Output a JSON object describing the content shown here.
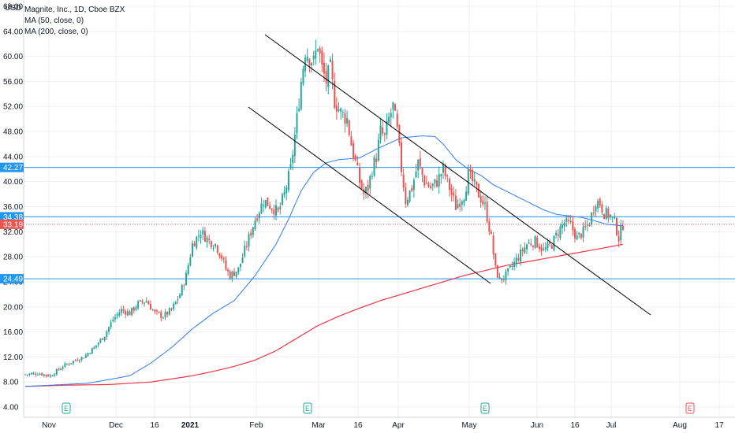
{
  "chart_data": {
    "type": "candlestick",
    "currency_label": "USD",
    "legend": [
      {
        "label": "Magnite, Inc., 1D, Cboe BZX"
      },
      {
        "label": "MA (50, close, 0)"
      },
      {
        "label": "MA (200, close, 0)"
      }
    ],
    "y_axis": {
      "ticks": [
        "4.00",
        "8.00",
        "12.00",
        "16.00",
        "20.00",
        "24.00",
        "28.00",
        "32.00",
        "36.00",
        "40.00",
        "44.00",
        "48.00",
        "52.00",
        "56.00",
        "60.00",
        "64.00",
        "68.00"
      ],
      "range": [
        2.5,
        69
      ]
    },
    "x_axis": {
      "ticks": [
        {
          "label": "Nov",
          "bold": false
        },
        {
          "label": "Dec",
          "bold": false
        },
        {
          "label": "16",
          "bold": false
        },
        {
          "label": "2021",
          "bold": true
        },
        {
          "label": "Feb",
          "bold": false
        },
        {
          "label": "Mar",
          "bold": false
        },
        {
          "label": "16",
          "bold": false
        },
        {
          "label": "Apr",
          "bold": false
        },
        {
          "label": "May",
          "bold": false
        },
        {
          "label": "Jun",
          "bold": false
        },
        {
          "label": "16",
          "bold": false
        },
        {
          "label": "Jul",
          "bold": false
        },
        {
          "label": "Aug",
          "bold": false
        },
        {
          "label": "17",
          "bold": false
        }
      ]
    },
    "horizontal_levels": [
      {
        "value": 42.27,
        "label": "42.27"
      },
      {
        "value": 34.38,
        "label": "34.38"
      },
      {
        "value": 24.49,
        "label": "24.49"
      }
    ],
    "last_price": {
      "value": 33.19,
      "label": "33.19"
    },
    "earnings_markers": [
      {
        "label": "E",
        "color": "#26a69a"
      },
      {
        "label": "E",
        "color": "#26a69a"
      },
      {
        "label": "E",
        "color": "#26a69a"
      },
      {
        "label": "E",
        "color": "#ef5350"
      }
    ],
    "colors": {
      "up": "#26a69a",
      "down": "#ef5350",
      "ma50": "#3179f5",
      "ma200": "#f23645",
      "level": "#2196f3",
      "trendline": "#000000",
      "grid": "#eef0f3",
      "axis_text": "#131722"
    },
    "close_path": [
      [
        0,
        9.2
      ],
      [
        6,
        9.4
      ],
      [
        12,
        9.0
      ],
      [
        18,
        10.5
      ],
      [
        24,
        11.5
      ],
      [
        28,
        12.0
      ],
      [
        33,
        13.5
      ],
      [
        38,
        15.5
      ],
      [
        42,
        18.0
      ],
      [
        46,
        19.5
      ],
      [
        50,
        19.0
      ],
      [
        54,
        20.5
      ],
      [
        58,
        21.0
      ],
      [
        62,
        19.0
      ],
      [
        66,
        18.5
      ],
      [
        70,
        19.5
      ],
      [
        74,
        22.0
      ],
      [
        77,
        25.0
      ],
      [
        80,
        30.0
      ],
      [
        84,
        32.0
      ],
      [
        88,
        30.5
      ],
      [
        91,
        30.0
      ],
      [
        94,
        28.0
      ],
      [
        96,
        26.0
      ],
      [
        98,
        25.0
      ],
      [
        102,
        26.0
      ],
      [
        106,
        30.0
      ],
      [
        110,
        34.0
      ],
      [
        114,
        37.0
      ],
      [
        118,
        36.0
      ],
      [
        121,
        35.0
      ],
      [
        124,
        38.0
      ],
      [
        127,
        42.0
      ],
      [
        130,
        50.0
      ],
      [
        132,
        56.0
      ],
      [
        134,
        61.0
      ],
      [
        136,
        60.0
      ],
      [
        138,
        59.0
      ],
      [
        140,
        62.0
      ],
      [
        142,
        58.0
      ],
      [
        144,
        56.0
      ],
      [
        146,
        58.0
      ],
      [
        148,
        53.0
      ],
      [
        151,
        51.0
      ],
      [
        154,
        50.0
      ],
      [
        156,
        46.0
      ],
      [
        158,
        43.0
      ],
      [
        160,
        40.0
      ],
      [
        162,
        38.0
      ],
      [
        164,
        39.0
      ],
      [
        166,
        42.0
      ],
      [
        168,
        44.0
      ],
      [
        170,
        48.0
      ],
      [
        172,
        47.0
      ],
      [
        174,
        50.0
      ],
      [
        176,
        52.0
      ],
      [
        178,
        48.0
      ],
      [
        180,
        42.0
      ],
      [
        182,
        37.0
      ],
      [
        185,
        39.0
      ],
      [
        188,
        43.0
      ],
      [
        191,
        40.0
      ],
      [
        194,
        39.0
      ],
      [
        197,
        40.0
      ],
      [
        200,
        42.0
      ],
      [
        203,
        39.0
      ],
      [
        206,
        36.0
      ],
      [
        210,
        38.0
      ],
      [
        212,
        41.0
      ],
      [
        214,
        40.0
      ],
      [
        217,
        38.0
      ],
      [
        220,
        36.0
      ],
      [
        223,
        31.0
      ],
      [
        225,
        26.0
      ],
      [
        227,
        24.3
      ],
      [
        230,
        25.0
      ],
      [
        233,
        26.5
      ],
      [
        236,
        28.0
      ],
      [
        240,
        30.0
      ],
      [
        244,
        30.5
      ],
      [
        248,
        29.0
      ],
      [
        252,
        30.0
      ],
      [
        255,
        32.0
      ],
      [
        258,
        33.5
      ],
      [
        261,
        33.0
      ],
      [
        264,
        31.0
      ],
      [
        267,
        32.0
      ],
      [
        270,
        33.5
      ],
      [
        273,
        37.0
      ],
      [
        275,
        36.5
      ],
      [
        277,
        35.0
      ],
      [
        280,
        34.5
      ],
      [
        282,
        33.5
      ],
      [
        284,
        31.0
      ],
      [
        286,
        33.19
      ]
    ],
    "ma50_path": [
      [
        0,
        7.3
      ],
      [
        30,
        7.8
      ],
      [
        50,
        9.0
      ],
      [
        60,
        11.0
      ],
      [
        70,
        13.5
      ],
      [
        80,
        16.5
      ],
      [
        90,
        19.0
      ],
      [
        100,
        21.0
      ],
      [
        110,
        25.0
      ],
      [
        120,
        30.0
      ],
      [
        126,
        34.0
      ],
      [
        132,
        38.5
      ],
      [
        138,
        41.5
      ],
      [
        144,
        43.0
      ],
      [
        150,
        43.5
      ],
      [
        160,
        43.8
      ],
      [
        170,
        45.5
      ],
      [
        180,
        47.0
      ],
      [
        190,
        47.3
      ],
      [
        196,
        47.2
      ],
      [
        200,
        46.0
      ],
      [
        206,
        43.5
      ],
      [
        212,
        42.0
      ],
      [
        218,
        41.0
      ],
      [
        224,
        39.5
      ],
      [
        230,
        38.5
      ],
      [
        236,
        37.5
      ],
      [
        242,
        36.5
      ],
      [
        248,
        35.5
      ],
      [
        254,
        34.8
      ],
      [
        260,
        34.5
      ],
      [
        266,
        34.3
      ],
      [
        272,
        33.8
      ],
      [
        278,
        33.2
      ],
      [
        284,
        33.0
      ],
      [
        286,
        33.0
      ]
    ],
    "ma200_path": [
      [
        0,
        7.3
      ],
      [
        20,
        7.5
      ],
      [
        40,
        7.6
      ],
      [
        60,
        8.0
      ],
      [
        70,
        8.5
      ],
      [
        80,
        9.0
      ],
      [
        90,
        9.7
      ],
      [
        100,
        10.5
      ],
      [
        110,
        11.5
      ],
      [
        120,
        13.0
      ],
      [
        130,
        15.0
      ],
      [
        140,
        17.0
      ],
      [
        150,
        18.5
      ],
      [
        160,
        19.8
      ],
      [
        170,
        21.0
      ],
      [
        180,
        22.0
      ],
      [
        190,
        23.0
      ],
      [
        200,
        24.0
      ],
      [
        210,
        25.0
      ],
      [
        220,
        25.8
      ],
      [
        230,
        26.6
      ],
      [
        240,
        27.2
      ],
      [
        250,
        27.8
      ],
      [
        260,
        28.4
      ],
      [
        270,
        29.0
      ],
      [
        280,
        29.6
      ],
      [
        286,
        30.0
      ]
    ]
  }
}
